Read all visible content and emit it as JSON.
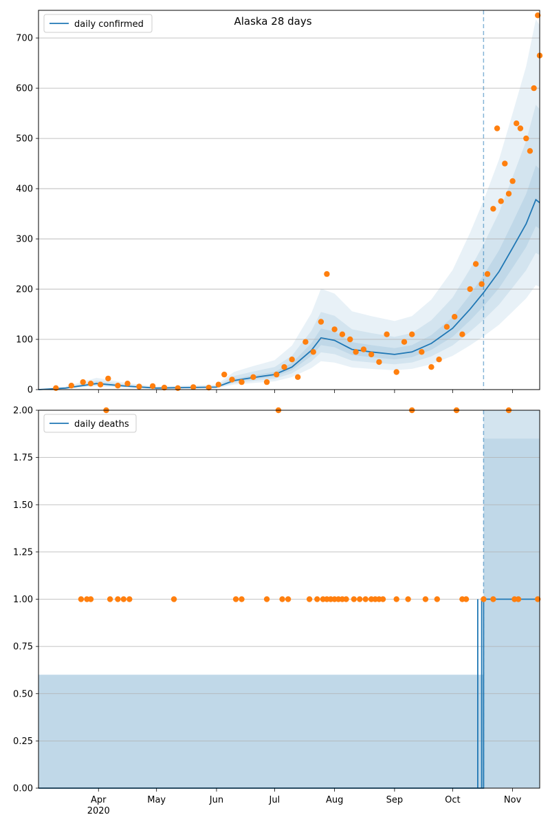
{
  "chart_data": [
    {
      "type": "line",
      "title": "Alaska 28 days",
      "xlabel": "",
      "ylabel": "",
      "ylim": [
        0,
        755
      ],
      "grid": "horizontal",
      "legend_placement": "top-left",
      "yticks": [
        0,
        100,
        200,
        300,
        400,
        500,
        600,
        700
      ],
      "forecast_start": "2020-10-17",
      "series": [
        {
          "name": "daily confirmed",
          "kind": "line",
          "color": "#1f77b4",
          "x": [
            "2020-03-01",
            "2020-03-15",
            "2020-03-31",
            "2020-04-15",
            "2020-05-01",
            "2020-05-15",
            "2020-06-01",
            "2020-06-10",
            "2020-06-20",
            "2020-07-01",
            "2020-07-10",
            "2020-07-20",
            "2020-07-25",
            "2020-08-01",
            "2020-08-10",
            "2020-08-20",
            "2020-09-01",
            "2020-09-10",
            "2020-09-20",
            "2020-10-01",
            "2020-10-10",
            "2020-10-17",
            "2020-10-25",
            "2020-11-01",
            "2020-11-08",
            "2020-11-13",
            "2020-11-15"
          ],
          "values": [
            0,
            3,
            12,
            7,
            3,
            4,
            5,
            18,
            24,
            30,
            45,
            78,
            103,
            98,
            80,
            75,
            70,
            75,
            92,
            122,
            160,
            193,
            235,
            282,
            330,
            378,
            372
          ]
        },
        {
          "name": "",
          "kind": "scatter",
          "color": "#ff7f0e",
          "x": [
            "2020-03-10",
            "2020-03-18",
            "2020-03-24",
            "2020-03-28",
            "2020-04-02",
            "2020-04-06",
            "2020-04-11",
            "2020-04-16",
            "2020-04-22",
            "2020-04-29",
            "2020-05-05",
            "2020-05-12",
            "2020-05-20",
            "2020-05-28",
            "2020-06-02",
            "2020-06-05",
            "2020-06-09",
            "2020-06-14",
            "2020-06-20",
            "2020-06-27",
            "2020-07-02",
            "2020-07-06",
            "2020-07-10",
            "2020-07-13",
            "2020-07-17",
            "2020-07-21",
            "2020-07-25",
            "2020-07-28",
            "2020-08-01",
            "2020-08-05",
            "2020-08-09",
            "2020-08-12",
            "2020-08-16",
            "2020-08-20",
            "2020-08-24",
            "2020-08-28",
            "2020-09-02",
            "2020-09-06",
            "2020-09-10",
            "2020-09-15",
            "2020-09-20",
            "2020-09-24",
            "2020-09-28",
            "2020-10-02",
            "2020-10-06",
            "2020-10-10",
            "2020-10-13",
            "2020-10-16",
            "2020-10-19",
            "2020-10-22",
            "2020-10-24",
            "2020-10-26",
            "2020-10-28",
            "2020-10-30",
            "2020-11-01",
            "2020-11-03",
            "2020-11-05",
            "2020-11-08",
            "2020-11-10",
            "2020-11-12",
            "2020-11-14",
            "2020-11-15"
          ],
          "values": [
            3,
            8,
            15,
            12,
            10,
            22,
            8,
            12,
            6,
            7,
            4,
            3,
            5,
            4,
            10,
            30,
            20,
            15,
            25,
            15,
            30,
            45,
            60,
            25,
            95,
            75,
            135,
            230,
            120,
            110,
            100,
            75,
            80,
            70,
            55,
            110,
            35,
            95,
            110,
            75,
            45,
            60,
            125,
            145,
            110,
            200,
            250,
            210,
            230,
            360,
            520,
            375,
            450,
            390,
            415,
            530,
            520,
            500,
            475,
            600,
            745,
            665
          ]
        }
      ]
    },
    {
      "type": "line",
      "title": "",
      "xlabel": "",
      "ylabel": "",
      "ylim": [
        0,
        2
      ],
      "grid": "horizontal",
      "legend_placement": "top-left",
      "yticks": [
        "0.00",
        "0.25",
        "0.50",
        "0.75",
        "1.00",
        "1.25",
        "1.50",
        "1.75",
        "2.00"
      ],
      "forecast_start": "2020-10-17",
      "series": [
        {
          "name": "daily deaths",
          "kind": "line",
          "color": "#1f77b4",
          "x": [
            "2020-03-01",
            "2020-10-14",
            "2020-10-14",
            "2020-10-14",
            "2020-10-16",
            "2020-10-16",
            "2020-10-16",
            "2020-10-17",
            "2020-10-17",
            "2020-11-15"
          ],
          "values": [
            0,
            0,
            1,
            0,
            0,
            1,
            0,
            0,
            1,
            1
          ]
        },
        {
          "name": "",
          "kind": "scatter",
          "color": "#ff7f0e",
          "x": [
            "2020-03-23",
            "2020-03-26",
            "2020-03-28",
            "2020-04-05",
            "2020-04-07",
            "2020-04-11",
            "2020-04-14",
            "2020-04-17",
            "2020-05-10",
            "2020-06-11",
            "2020-06-14",
            "2020-06-27",
            "2020-07-03",
            "2020-07-05",
            "2020-07-08",
            "2020-07-19",
            "2020-07-23",
            "2020-07-26",
            "2020-07-28",
            "2020-07-30",
            "2020-08-01",
            "2020-08-03",
            "2020-08-05",
            "2020-08-07",
            "2020-08-11",
            "2020-08-14",
            "2020-08-17",
            "2020-08-20",
            "2020-08-22",
            "2020-08-24",
            "2020-08-26",
            "2020-09-02",
            "2020-09-08",
            "2020-09-10",
            "2020-09-17",
            "2020-09-23",
            "2020-10-03",
            "2020-10-06",
            "2020-10-08",
            "2020-10-17",
            "2020-10-22",
            "2020-10-30",
            "2020-11-02",
            "2020-11-04",
            "2020-11-14"
          ],
          "values": [
            1,
            1,
            1,
            2,
            1,
            1,
            1,
            1,
            1,
            1,
            1,
            1,
            2,
            1,
            1,
            1,
            1,
            1,
            1,
            1,
            1,
            1,
            1,
            1,
            1,
            1,
            1,
            1,
            1,
            1,
            1,
            1,
            1,
            2,
            1,
            1,
            2,
            1,
            1,
            1,
            1,
            2,
            1,
            1,
            1
          ]
        }
      ]
    }
  ],
  "x_tick_labels": [
    {
      "date": "2020-04-01",
      "label": "Apr",
      "year": "2020"
    },
    {
      "date": "2020-05-01",
      "label": "May",
      "year": ""
    },
    {
      "date": "2020-06-01",
      "label": "Jun",
      "year": ""
    },
    {
      "date": "2020-07-01",
      "label": "Jul",
      "year": ""
    },
    {
      "date": "2020-08-01",
      "label": "Aug",
      "year": ""
    },
    {
      "date": "2020-09-01",
      "label": "Sep",
      "year": ""
    },
    {
      "date": "2020-10-01",
      "label": "Oct",
      "year": ""
    },
    {
      "date": "2020-11-01",
      "label": "Nov",
      "year": ""
    }
  ],
  "x_range": [
    "2020-03-01",
    "2020-11-15"
  ],
  "colors": {
    "line": "#1f77b4",
    "points": "#ff7f0e",
    "band": "#1f77b4",
    "grid": "#b0b0b0",
    "forecast_marker": "#1f77b4"
  }
}
